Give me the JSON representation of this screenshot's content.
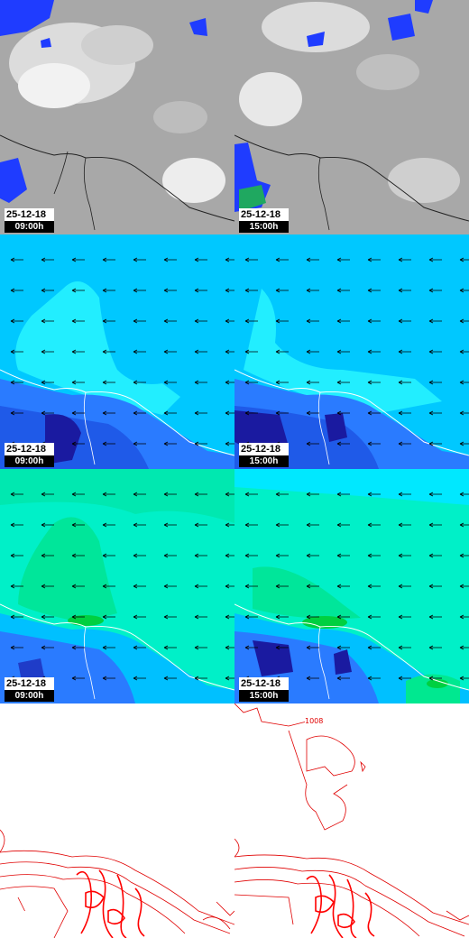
{
  "panels": {
    "r0c0": {
      "date": "25-12-18",
      "time": "09:00h"
    },
    "r0c1": {
      "date": "25-12-18",
      "time": "15:00h"
    },
    "r1c0": {
      "date": "25-12-18",
      "time": "09:00h"
    },
    "r1c1": {
      "date": "25-12-18",
      "time": "15:00h"
    },
    "r2c0": {
      "date": "25-12-18",
      "time": "09:00h"
    },
    "r2c1": {
      "date": "25-12-18",
      "time": "15:00h"
    },
    "r3c0": {},
    "r3c1": {
      "contour_label": "1008"
    }
  },
  "colors": {
    "cloud_gray": "#a9a9a9",
    "cloud_white": "#f0f0f0",
    "precip_blue": "#1f3cff",
    "wind_bg": "#00c8ff",
    "wind_light": "#22eeff",
    "wind_mid": "#2a7bff",
    "wind_dark": "#1a1aa0",
    "humid_bg": "#00f0c8",
    "humid_green": "#00e070",
    "pressure_red": "#e00000",
    "coast": "#222222"
  }
}
